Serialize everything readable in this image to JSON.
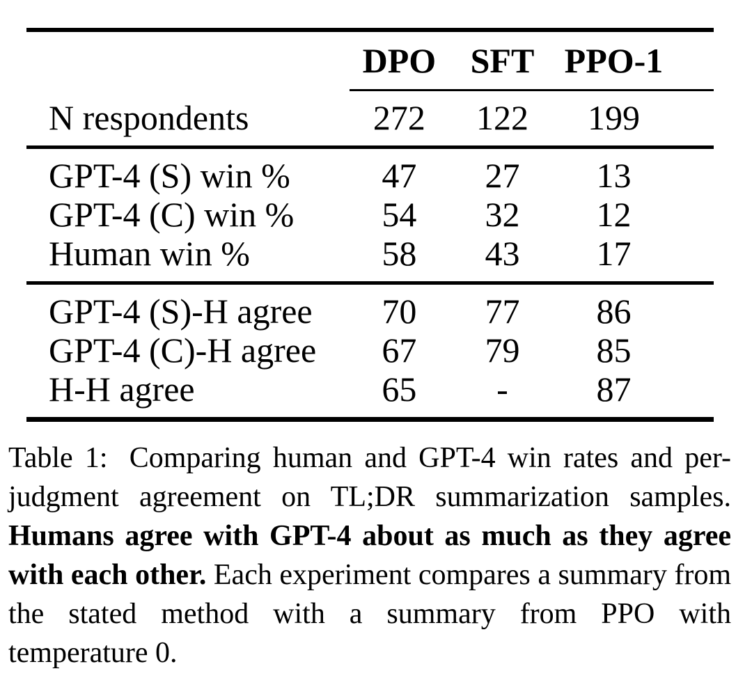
{
  "colors": {
    "background": "#ffffff",
    "text": "#000000",
    "rules": "#000000"
  },
  "table": {
    "stub_header": "",
    "columns": [
      "DPO",
      "SFT",
      "PPO-1"
    ],
    "sections": [
      {
        "name": "respondents",
        "rows": [
          {
            "label": "N respondents",
            "values": [
              "272",
              "122",
              "199"
            ]
          }
        ]
      },
      {
        "name": "win-rates",
        "rows": [
          {
            "label": "GPT-4 (S) win %",
            "values": [
              "47",
              "27",
              "13"
            ]
          },
          {
            "label": "GPT-4 (C) win %",
            "values": [
              "54",
              "32",
              "12"
            ]
          },
          {
            "label": "Human win %",
            "values": [
              "58",
              "43",
              "17"
            ]
          }
        ]
      },
      {
        "name": "agreement",
        "rows": [
          {
            "label": "GPT-4 (S)-H agree",
            "values": [
              "70",
              "77",
              "86"
            ]
          },
          {
            "label": "GPT-4 (C)-H agree",
            "values": [
              "67",
              "79",
              "85"
            ]
          },
          {
            "label": "H-H agree",
            "values": [
              "65",
              "-",
              "87"
            ]
          }
        ]
      }
    ]
  },
  "caption": {
    "prefix": "Table 1:",
    "lead": "Comparing human and GPT-4 win rates and per-judgment agreement on TL;DR summarization samples.",
    "bold_claim": "Humans agree with GPT-4 about as much as they agree with each other.",
    "tail": "Each experiment compares a summary from the stated method with a summary from PPO with temperature 0."
  }
}
